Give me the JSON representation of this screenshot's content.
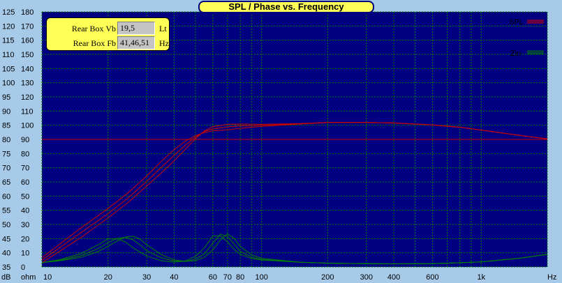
{
  "title": "SPL / Phase vs. Frequency",
  "params": [
    {
      "label": "Rear Box Vb",
      "value": "19,5",
      "unit": "Lt"
    },
    {
      "label": "Rear Box Fb",
      "value": "41,46,51",
      "unit": "Hz"
    }
  ],
  "legend": [
    {
      "name": "SPL",
      "color": "#cc0000"
    },
    {
      "name": "Zin",
      "color": "#008000"
    }
  ],
  "axes": {
    "db_ticks": [
      "125",
      "120",
      "115",
      "110",
      "105",
      "100",
      "95",
      "90",
      "85",
      "80",
      "75",
      "70",
      "65",
      "60",
      "55",
      "50",
      "45",
      "40",
      "35"
    ],
    "ohm_ticks": [
      "180",
      "170",
      "160",
      "150",
      "140",
      "130",
      "120",
      "110",
      "100",
      "90",
      "80",
      "70",
      "60",
      "50",
      "40",
      "30",
      "20",
      "10",
      "0"
    ],
    "db_unit": "dB",
    "ohm_unit": "ohm",
    "x_unit": "Hz",
    "x_tick_labels": [
      {
        "f": 10,
        "label": "10"
      },
      {
        "f": 20,
        "label": "20"
      },
      {
        "f": 30,
        "label": "30"
      },
      {
        "f": 40,
        "label": "40"
      },
      {
        "f": 60,
        "label": "60"
      },
      {
        "f": 70,
        "label": "70"
      },
      {
        "f": 80,
        "label": "80"
      },
      {
        "f": 100,
        "label": "100"
      },
      {
        "f": 200,
        "label": "200"
      },
      {
        "f": 300,
        "label": "300"
      },
      {
        "f": 400,
        "label": "400"
      },
      {
        "f": 600,
        "label": "600"
      },
      {
        "f": 1000,
        "label": "1k"
      }
    ]
  },
  "chart_data": {
    "type": "line",
    "title": "SPL / Phase vs. Frequency",
    "x_scale": "log",
    "xlim": [
      10,
      2000
    ],
    "ylim_db": [
      35,
      125
    ],
    "ylim_ohm": [
      0,
      180
    ],
    "reference_line_db": 80,
    "grid": true,
    "legend_position": "top-right",
    "series": [
      {
        "name": "SPL",
        "axis": "dB",
        "color": "#cc0000",
        "x": [
          10,
          15,
          20,
          25,
          30,
          35,
          40,
          45,
          50,
          55,
          60,
          70,
          80,
          100,
          150,
          200,
          300,
          400,
          600,
          800,
          1000,
          1500,
          2000
        ],
        "y": [
          36.5,
          45.3,
          52.3,
          58.1,
          63.6,
          68.2,
          72.5,
          76.5,
          80.2,
          83.0,
          84.5,
          85.3,
          85.4,
          85.3,
          85.6,
          86.0,
          86.0,
          85.8,
          85.1,
          84.3,
          83.3,
          81.4,
          80.2
        ]
      },
      {
        "name": "SPL",
        "axis": "dB",
        "color": "#cc0000",
        "x": [
          10,
          15,
          20,
          25,
          30,
          35,
          40,
          45,
          50,
          55,
          60,
          70,
          80,
          100,
          150,
          200,
          300,
          400,
          600,
          800,
          1000,
          1500,
          2000
        ],
        "y": [
          37.4,
          47.0,
          53.8,
          59.7,
          65.2,
          70.2,
          74.4,
          77.9,
          80.8,
          82.8,
          83.7,
          84.4,
          84.8,
          85.0,
          85.5,
          86.0,
          86.0,
          85.8,
          85.1,
          84.3,
          83.3,
          81.4,
          80.2
        ]
      },
      {
        "name": "SPL",
        "axis": "dB",
        "color": "#cc0000",
        "x": [
          10,
          15,
          20,
          25,
          30,
          35,
          40,
          45,
          50,
          55,
          60,
          70,
          80,
          100,
          150,
          200,
          300,
          400,
          600,
          800,
          1000,
          1500,
          2000
        ],
        "y": [
          38.3,
          48.7,
          55.6,
          61.5,
          67.1,
          72.3,
          76.4,
          79.4,
          81.3,
          82.4,
          83.0,
          83.4,
          83.9,
          84.6,
          85.4,
          86.0,
          86.0,
          85.8,
          85.1,
          84.3,
          83.3,
          81.4,
          80.2
        ]
      },
      {
        "name": "Zin",
        "axis": "ohm",
        "color": "#008000",
        "x": [
          10,
          12,
          15,
          18,
          20,
          22,
          24,
          26,
          30,
          35,
          40,
          45,
          50,
          55,
          60,
          65,
          70,
          75,
          80,
          90,
          100,
          150,
          200,
          300,
          400,
          600,
          1000,
          1500,
          2000
        ],
        "y": [
          3.1,
          5.1,
          9.4,
          15.6,
          19.8,
          19.8,
          17.7,
          13.5,
          7.7,
          4.4,
          3.4,
          4.3,
          7.5,
          13.6,
          21.9,
          21.9,
          17.7,
          12.4,
          9.0,
          6.0,
          4.9,
          3.3,
          2.7,
          2.3,
          2.2,
          2.3,
          3.6,
          6.2,
          8.9
        ]
      },
      {
        "name": "Zin",
        "axis": "ohm",
        "color": "#008000",
        "x": [
          10,
          12,
          15,
          18,
          20,
          22,
          24,
          26,
          28,
          30,
          35,
          40,
          45,
          50,
          55,
          60,
          65,
          70,
          75,
          80,
          90,
          100,
          150,
          200,
          300,
          400,
          600,
          1000,
          1500,
          2000
        ],
        "y": [
          3.1,
          4.6,
          7.9,
          12.9,
          17.2,
          20.1,
          20.9,
          19.2,
          15.5,
          11.5,
          6.4,
          4.2,
          3.9,
          5.5,
          9.3,
          16.8,
          23.1,
          21.4,
          16.2,
          11.0,
          7.0,
          5.3,
          3.3,
          2.7,
          2.3,
          2.2,
          2.3,
          3.6,
          6.2,
          8.9
        ]
      },
      {
        "name": "Zin",
        "axis": "ohm",
        "color": "#008000",
        "x": [
          10,
          12,
          15,
          18,
          20,
          22,
          24,
          26,
          28,
          30,
          35,
          40,
          45,
          50,
          55,
          60,
          65,
          70,
          75,
          80,
          90,
          100,
          150,
          200,
          300,
          400,
          600,
          1000,
          1500,
          2000
        ],
        "y": [
          3.1,
          4.3,
          6.7,
          10.8,
          14.6,
          18.3,
          21.1,
          21.7,
          19.6,
          15.7,
          8.7,
          5.0,
          4.0,
          4.4,
          6.9,
          12.0,
          19.2,
          23.3,
          20.2,
          14.6,
          8.6,
          6.1,
          3.4,
          2.7,
          2.3,
          2.2,
          2.3,
          3.6,
          6.2,
          8.9
        ]
      }
    ]
  }
}
